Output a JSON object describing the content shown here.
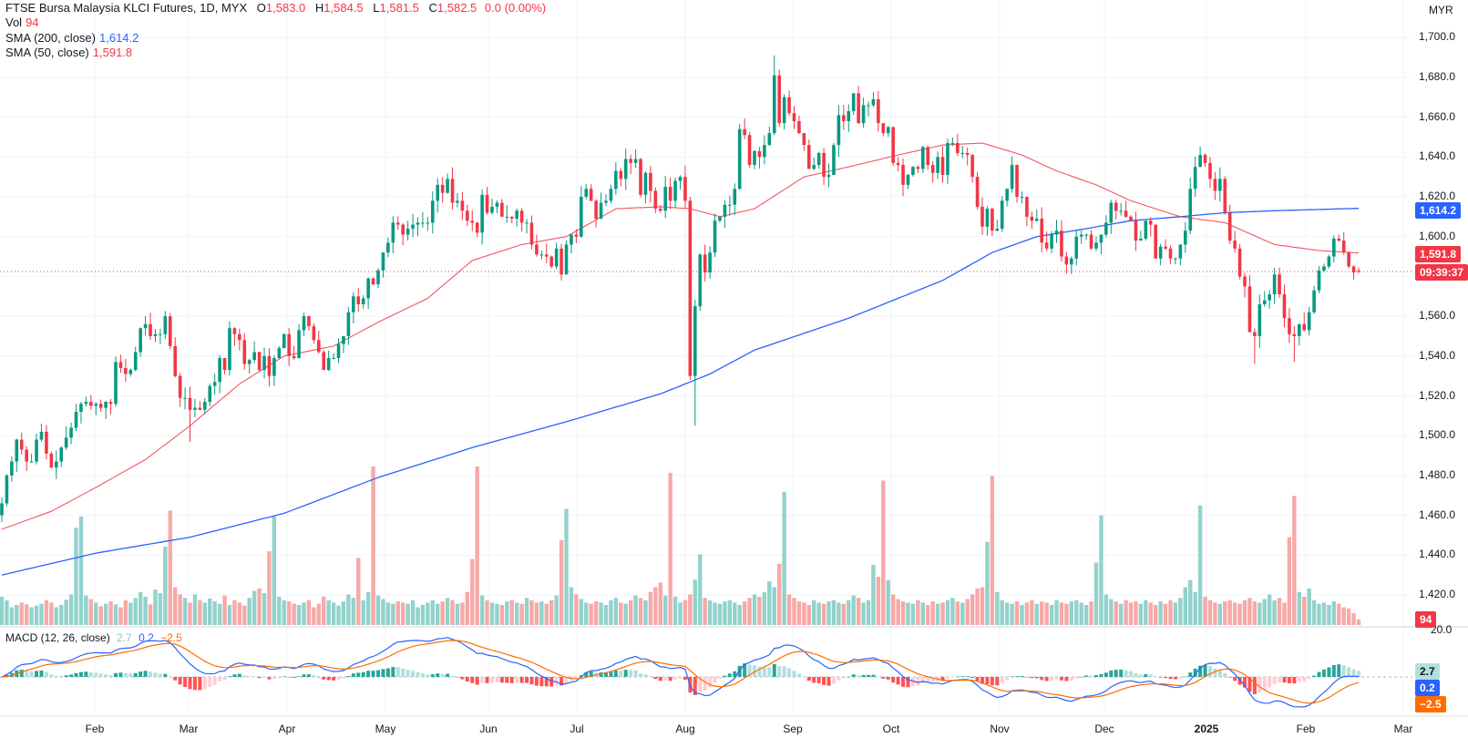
{
  "header": {
    "symbol": "FTSE Bursa Malaysia KLCI Futures, 1D, MYX",
    "ohlc": [
      {
        "label": "O",
        "value": "1,583.0"
      },
      {
        "label": "H",
        "value": "1,584.5"
      },
      {
        "label": "L",
        "value": "1,581.5"
      },
      {
        "label": "C",
        "value": "1,582.5"
      }
    ],
    "change": "0.0 (0.00%)"
  },
  "legend": {
    "vol_label": "Vol",
    "vol_value": "94",
    "sma200_label": "SMA (200, close)",
    "sma200_value": "1,614.2",
    "sma50_label": "SMA (50, close)",
    "sma50_value": "1,591.8",
    "macd_label": "MACD (12, 26, close)",
    "macd_hist": "2.7",
    "macd_value": "0.2",
    "macd_signal": "−2.5"
  },
  "price_axis": {
    "currency": "MYR",
    "ticks": [
      "1,700.0",
      "1,680.0",
      "1,660.0",
      "1,640.0",
      "1,620.0",
      "1,600.0",
      "1,560.0",
      "1,540.0",
      "1,520.0",
      "1,500.0",
      "1,480.0",
      "1,460.0",
      "1,440.0",
      "1,420.0"
    ],
    "macd_top_tick": "20.0"
  },
  "tags": {
    "sma200": "1,614.2",
    "sma50": "1,591.8",
    "countdown": "09:39:37",
    "volume": "94",
    "macd_hist": "2.7",
    "macd": "0.2",
    "signal": "−2.5"
  },
  "time_axis": [
    "Feb",
    "Mar",
    "Apr",
    "May",
    "Jun",
    "Jul",
    "Aug",
    "Sep",
    "Oct",
    "Nov",
    "Dec",
    "2025",
    "Feb",
    "Mar"
  ],
  "colors": {
    "up": "#089981",
    "down": "#f23645",
    "vol_up": "#92d2cc",
    "vol_down": "#f7a9a7",
    "sma200": "#2962ff",
    "sma50": "#f23645",
    "macd": "#2962ff",
    "signal": "#ff6d00",
    "hist_up_strong": "#26a69a",
    "hist_up_weak": "#b2dfdb",
    "hist_down_strong": "#ff5252",
    "hist_down_weak": "#ffcdd2",
    "grid": "#f0f3fa"
  },
  "chart_data": {
    "type": "candlestick",
    "ylim": [
      1410,
      1710
    ],
    "last_price": 1582.5,
    "last_ohlc": {
      "open": 1583.0,
      "high": 1584.5,
      "low": 1581.5,
      "close": 1582.5
    },
    "closes": [
      1466,
      1480,
      1487,
      1498,
      1493,
      1487,
      1487,
      1498,
      1502,
      1491,
      1484,
      1487,
      1494,
      1499,
      1504,
      1512,
      1516,
      1517,
      1515,
      1516,
      1514,
      1517,
      1516,
      1537,
      1534,
      1531,
      1533,
      1542,
      1554,
      1556,
      1550,
      1551,
      1551,
      1560,
      1545,
      1530,
      1519,
      1519,
      1513,
      1514,
      1513,
      1517,
      1525,
      1527,
      1539,
      1533,
      1554,
      1551,
      1548,
      1536,
      1538,
      1542,
      1533,
      1540,
      1530,
      1539,
      1544,
      1551,
      1540,
      1539,
      1553,
      1560,
      1555,
      1548,
      1542,
      1533,
      1539,
      1539,
      1546,
      1550,
      1562,
      1570,
      1566,
      1569,
      1579,
      1576,
      1583,
      1592,
      1597,
      1607,
      1606,
      1601,
      1604,
      1606,
      1607,
      1607,
      1607,
      1618,
      1626,
      1622,
      1629,
      1617,
      1618,
      1613,
      1608,
      1607,
      1602,
      1621,
      1612,
      1615,
      1617,
      1610,
      1610,
      1609,
      1613,
      1607,
      1607,
      1596,
      1591,
      1591,
      1590,
      1585,
      1594,
      1581,
      1596,
      1601,
      1600,
      1620,
      1624,
      1618,
      1609,
      1617,
      1618,
      1624,
      1633,
      1629,
      1639,
      1637,
      1639,
      1621,
      1632,
      1623,
      1614,
      1613,
      1625,
      1618,
      1628,
      1630,
      1618,
      1530,
      1565,
      1591,
      1582,
      1592,
      1608,
      1610,
      1616,
      1616,
      1624,
      1654,
      1651,
      1636,
      1643,
      1640,
      1646,
      1652,
      1681,
      1657,
      1670,
      1662,
      1658,
      1652,
      1646,
      1634,
      1636,
      1642,
      1630,
      1631,
      1646,
      1661,
      1658,
      1663,
      1672,
      1657,
      1666,
      1666,
      1669,
      1657,
      1652,
      1655,
      1637,
      1636,
      1626,
      1631,
      1635,
      1634,
      1645,
      1636,
      1632,
      1640,
      1631,
      1647,
      1647,
      1642,
      1642,
      1641,
      1630,
      1615,
      1605,
      1614,
      1603,
      1604,
      1618,
      1624,
      1636,
      1620,
      1620,
      1610,
      1608,
      1609,
      1597,
      1594,
      1601,
      1603,
      1590,
      1586,
      1589,
      1600,
      1601,
      1601,
      1594,
      1597,
      1601,
      1607,
      1617,
      1613,
      1613,
      1610,
      1608,
      1598,
      1599,
      1608,
      1606,
      1589,
      1595,
      1594,
      1589,
      1589,
      1596,
      1603,
      1624,
      1635,
      1641,
      1637,
      1629,
      1623,
      1629,
      1612,
      1598,
      1594,
      1580,
      1575,
      1552,
      1550,
      1566,
      1568,
      1571,
      1581,
      1571,
      1559,
      1551,
      1550,
      1556,
      1553,
      1562,
      1573,
      1583,
      1585,
      1590,
      1599,
      1598,
      1592,
      1585,
      1582,
      1582.5
    ],
    "wick_extremes": [
      {
        "bar": 38,
        "low": 1497
      },
      {
        "bar": 140,
        "low": 1505
      },
      {
        "bar": 156,
        "high": 1691
      },
      {
        "bar": 253,
        "low": 1536
      },
      {
        "bar": 261,
        "low": 1537
      }
    ],
    "volume": [
      480,
      420,
      300,
      340,
      380,
      350,
      300,
      330,
      360,
      420,
      380,
      300,
      340,
      430,
      520,
      1650,
      1840,
      500,
      440,
      380,
      320,
      360,
      400,
      350,
      300,
      420,
      380,
      460,
      560,
      480,
      350,
      600,
      540,
      1330,
      1940,
      640,
      520,
      460,
      380,
      520,
      420,
      380,
      450,
      400,
      360,
      500,
      340,
      420,
      380,
      330,
      460,
      580,
      620,
      540,
      1250,
      1840,
      480,
      420,
      400,
      360,
      340,
      380,
      420,
      300,
      360,
      480,
      420,
      380,
      330,
      400,
      520,
      460,
      1140,
      420,
      560,
      2690,
      500,
      440,
      380,
      360,
      400,
      380,
      360,
      420,
      300,
      340,
      380,
      420,
      360,
      400,
      460,
      420,
      360,
      380,
      560,
      1120,
      2690,
      500,
      420,
      380,
      360,
      340,
      400,
      420,
      380,
      360,
      460,
      420,
      380,
      400,
      360,
      420,
      500,
      1440,
      1970,
      640,
      520,
      440,
      380,
      360,
      400,
      380,
      340,
      420,
      460,
      380,
      360,
      420,
      500,
      460,
      420,
      560,
      640,
      720,
      500,
      2580,
      480,
      380,
      420,
      520,
      770,
      1200,
      460,
      420,
      380,
      360,
      400,
      420,
      380,
      340,
      400,
      460,
      520,
      480,
      560,
      740,
      640,
      1040,
      2260,
      520,
      460,
      400,
      380,
      340,
      420,
      380,
      360,
      400,
      420,
      380,
      360,
      420,
      500,
      460,
      380,
      420,
      1020,
      820,
      2450,
      760,
      520,
      440,
      400,
      380,
      360,
      420,
      380,
      340,
      400,
      360,
      380,
      420,
      460,
      400,
      380,
      440,
      520,
      620,
      640,
      1410,
      2530,
      560,
      420,
      380,
      360,
      400,
      340,
      380,
      420,
      360,
      400,
      380,
      340,
      420,
      380,
      360,
      400,
      420,
      380,
      340,
      400,
      1060,
      1860,
      520,
      440,
      400,
      360,
      420,
      380,
      400,
      360,
      420,
      380,
      340,
      400,
      360,
      420,
      380,
      460,
      640,
      760,
      560,
      2030,
      480,
      420,
      380,
      360,
      400,
      420,
      380,
      360,
      420,
      460,
      400,
      380,
      440,
      520,
      420,
      460,
      380,
      1490,
      2190,
      560,
      480,
      620,
      420,
      360,
      380,
      340,
      400,
      360,
      300,
      280,
      200,
      94
    ],
    "sma50": [
      [
        0,
        1453
      ],
      [
        10,
        1462
      ],
      [
        19,
        1474
      ],
      [
        29,
        1488
      ],
      [
        38,
        1505
      ],
      [
        48,
        1526
      ],
      [
        57,
        1540
      ],
      [
        67,
        1545
      ],
      [
        76,
        1557
      ],
      [
        86,
        1569
      ],
      [
        95,
        1588
      ],
      [
        105,
        1596
      ],
      [
        114,
        1600
      ],
      [
        124,
        1614
      ],
      [
        133,
        1615
      ],
      [
        139,
        1614
      ],
      [
        145,
        1610
      ],
      [
        152,
        1614
      ],
      [
        162,
        1630
      ],
      [
        171,
        1635
      ],
      [
        181,
        1641
      ],
      [
        190,
        1646
      ],
      [
        198,
        1647
      ],
      [
        206,
        1641
      ],
      [
        213,
        1633
      ],
      [
        221,
        1626
      ],
      [
        228,
        1618
      ],
      [
        238,
        1610
      ],
      [
        247,
        1607
      ],
      [
        257,
        1596
      ],
      [
        266,
        1593
      ],
      [
        274,
        1591.8
      ]
    ],
    "sma200": [
      [
        0,
        1430
      ],
      [
        19,
        1441
      ],
      [
        38,
        1449
      ],
      [
        57,
        1461
      ],
      [
        76,
        1479
      ],
      [
        95,
        1494
      ],
      [
        114,
        1507
      ],
      [
        133,
        1521
      ],
      [
        143,
        1531
      ],
      [
        152,
        1543
      ],
      [
        171,
        1559
      ],
      [
        190,
        1578
      ],
      [
        200,
        1592
      ],
      [
        209,
        1600
      ],
      [
        219,
        1604
      ],
      [
        228,
        1608
      ],
      [
        238,
        1610
      ],
      [
        247,
        1612
      ],
      [
        257,
        1613
      ],
      [
        274,
        1614.2
      ]
    ],
    "macd_params": {
      "fast": 12,
      "slow": 26,
      "signal": 9
    }
  }
}
